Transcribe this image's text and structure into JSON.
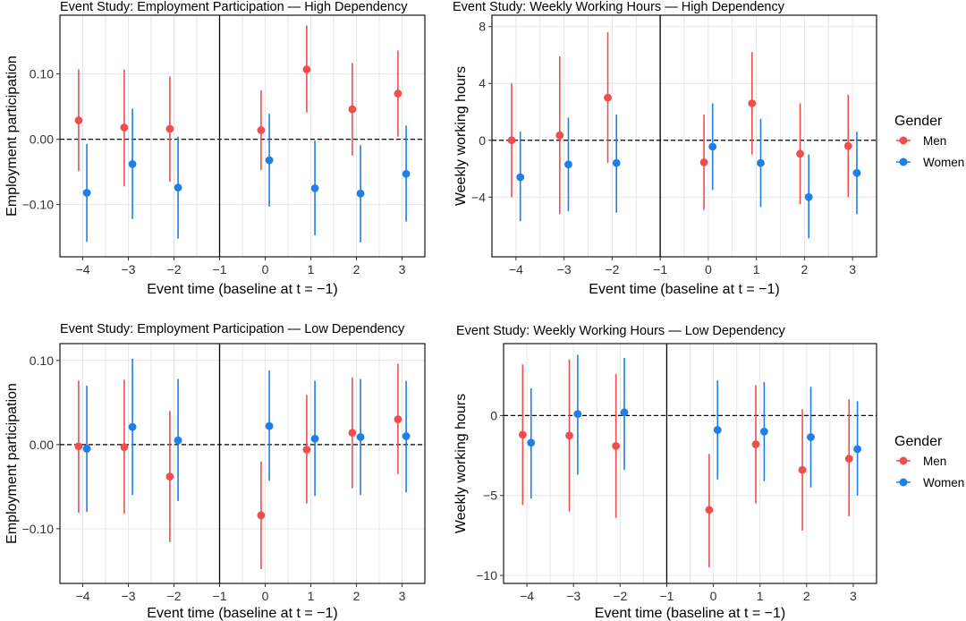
{
  "colors": {
    "men": "#F04E4E",
    "women": "#1E7FE8"
  },
  "legends": [
    {
      "title": "Gender",
      "items": [
        {
          "label": "Men",
          "color": "#F04E4E"
        },
        {
          "label": "Women",
          "color": "#1E7FE8"
        }
      ]
    },
    {
      "title": "Gender",
      "items": [
        {
          "label": "Men",
          "color": "#F04E4E"
        },
        {
          "label": "Women",
          "color": "#1E7FE8"
        }
      ]
    }
  ],
  "chart_data": [
    {
      "type": "scatter",
      "title": "Event Study: Employment Participation — High Dependency",
      "xlabel": "Event time (baseline at t = −1)",
      "ylabel": "Employment participation",
      "xlim": [
        -4.5,
        3.5
      ],
      "ylim": [
        -0.18,
        0.19
      ],
      "x_ticks": [
        -4,
        -3,
        -2,
        -1,
        0,
        1,
        2,
        3
      ],
      "x_tick_labels": [
        "−4",
        "−3",
        "−2",
        "−1",
        "0",
        "1",
        "2",
        "3"
      ],
      "y_ticks": [
        -0.1,
        0,
        0.1
      ],
      "y_tick_labels": [
        "−0.10",
        "0.00",
        "0.10"
      ],
      "hline": 0,
      "vline": -1,
      "grid": true,
      "series": [
        {
          "name": "Men",
          "color": "#F04E4E",
          "x": [
            -4,
            -3,
            -2,
            0,
            1,
            2,
            3
          ],
          "y": [
            0.029,
            0.018,
            0.016,
            0.014,
            0.107,
            0.046,
            0.07
          ],
          "lower": [
            -0.049,
            -0.072,
            -0.065,
            -0.047,
            0.041,
            -0.025,
            0.004
          ],
          "upper": [
            0.107,
            0.107,
            0.096,
            0.075,
            0.174,
            0.117,
            0.136
          ]
        },
        {
          "name": "Women",
          "color": "#1E7FE8",
          "x": [
            -4,
            -3,
            -2,
            0,
            1,
            2,
            3
          ],
          "y": [
            -0.082,
            -0.038,
            -0.074,
            -0.032,
            -0.075,
            -0.083,
            -0.053
          ],
          "lower": [
            -0.157,
            -0.122,
            -0.152,
            -0.103,
            -0.147,
            -0.158,
            -0.126
          ],
          "upper": [
            -0.007,
            0.047,
            0.004,
            0.039,
            -0.002,
            -0.009,
            0.021
          ]
        }
      ]
    },
    {
      "type": "scatter",
      "title": "Event Study: Weekly Working Hours — High Dependency",
      "xlabel": "Event time (baseline at t = −1)",
      "ylabel": "Weekly working hours",
      "xlim": [
        -4.5,
        3.5
      ],
      "ylim": [
        -8.2,
        8.8
      ],
      "x_ticks": [
        -4,
        -3,
        -2,
        -1,
        0,
        1,
        2,
        3
      ],
      "x_tick_labels": [
        "−4",
        "−3",
        "−2",
        "−1",
        "0",
        "1",
        "2",
        "3"
      ],
      "y_ticks": [
        -4,
        0,
        4,
        8
      ],
      "y_tick_labels": [
        "−4",
        "0",
        "4",
        "8"
      ],
      "hline": 0,
      "vline": -1,
      "grid": true,
      "series": [
        {
          "name": "Men",
          "color": "#F04E4E",
          "x": [
            -4,
            -3,
            -2,
            0,
            1,
            2,
            3
          ],
          "y": [
            0.0,
            0.35,
            3.0,
            -1.55,
            2.6,
            -0.95,
            -0.4
          ],
          "lower": [
            -4.0,
            -5.2,
            -1.6,
            -4.9,
            -1.0,
            -4.5,
            -4.0
          ],
          "upper": [
            4.0,
            5.9,
            7.6,
            1.8,
            6.2,
            2.6,
            3.2
          ]
        },
        {
          "name": "Women",
          "color": "#1E7FE8",
          "x": [
            -4,
            -3,
            -2,
            0,
            1,
            2,
            3
          ],
          "y": [
            -2.6,
            -1.7,
            -1.6,
            -0.45,
            -1.6,
            -4.0,
            -2.3
          ],
          "lower": [
            -5.7,
            -5.0,
            -5.1,
            -3.5,
            -4.7,
            -6.9,
            -5.2
          ],
          "upper": [
            0.6,
            1.6,
            1.8,
            2.6,
            1.5,
            -1.0,
            0.6
          ]
        }
      ]
    },
    {
      "type": "scatter",
      "title": "Event Study: Employment Participation — Low Dependency",
      "xlabel": "Event time (baseline at t = −1)",
      "ylabel": "Employment participation",
      "xlim": [
        -4.5,
        3.5
      ],
      "ylim": [
        -0.165,
        0.12
      ],
      "x_ticks": [
        -4,
        -3,
        -2,
        -1,
        0,
        1,
        2,
        3
      ],
      "x_tick_labels": [
        "−4",
        "−3",
        "−2",
        "−1",
        "0",
        "1",
        "2",
        "3"
      ],
      "y_ticks": [
        -0.1,
        0,
        0.1
      ],
      "y_tick_labels": [
        "−0.10",
        "0.00",
        "0.10"
      ],
      "hline": 0,
      "vline": -1,
      "grid": true,
      "series": [
        {
          "name": "Men",
          "color": "#F04E4E",
          "x": [
            -4,
            -3,
            -2,
            0,
            1,
            2,
            3
          ],
          "y": [
            -0.002,
            -0.003,
            -0.038,
            -0.084,
            -0.006,
            0.014,
            0.03
          ],
          "lower": [
            -0.081,
            -0.082,
            -0.116,
            -0.148,
            -0.07,
            -0.052,
            -0.035
          ],
          "upper": [
            0.076,
            0.077,
            0.04,
            -0.02,
            0.059,
            0.08,
            0.096
          ]
        },
        {
          "name": "Women",
          "color": "#1E7FE8",
          "x": [
            -4,
            -3,
            -2,
            0,
            1,
            2,
            3
          ],
          "y": [
            -0.005,
            0.021,
            0.005,
            0.022,
            0.007,
            0.009,
            0.01
          ],
          "lower": [
            -0.08,
            -0.06,
            -0.067,
            -0.043,
            -0.061,
            -0.06,
            -0.057
          ],
          "upper": [
            0.07,
            0.102,
            0.078,
            0.088,
            0.076,
            0.078,
            0.076
          ]
        }
      ]
    },
    {
      "type": "scatter",
      "title": "Event Study: Weekly Working Hours — Low Dependency",
      "xlabel": "Event time (baseline at t = −1)",
      "ylabel": "Weekly working hours",
      "xlim": [
        -4.5,
        3.5
      ],
      "ylim": [
        -10.5,
        4.5
      ],
      "x_ticks": [
        -4,
        -3,
        -2,
        -1,
        0,
        1,
        2,
        3
      ],
      "x_tick_labels": [
        "−4",
        "−3",
        "−2",
        "−1",
        "0",
        "1",
        "2",
        "3"
      ],
      "y_ticks": [
        -10,
        -5,
        0
      ],
      "y_tick_labels": [
        "−10",
        "−5",
        "0"
      ],
      "hline": 0,
      "vline": -1,
      "grid": true,
      "series": [
        {
          "name": "Men",
          "color": "#F04E4E",
          "x": [
            -4,
            -3,
            -2,
            0,
            1,
            2,
            3
          ],
          "y": [
            -1.2,
            -1.25,
            -1.9,
            -5.9,
            -1.8,
            -3.4,
            -2.7
          ],
          "lower": [
            -5.6,
            -6.0,
            -6.4,
            -9.5,
            -5.5,
            -7.2,
            -6.3
          ],
          "upper": [
            3.2,
            3.5,
            2.6,
            -2.4,
            1.9,
            0.4,
            1.0
          ]
        },
        {
          "name": "Women",
          "color": "#1E7FE8",
          "x": [
            -4,
            -3,
            -2,
            0,
            1,
            2,
            3
          ],
          "y": [
            -1.7,
            0.1,
            0.2,
            -0.9,
            -1.0,
            -1.35,
            -2.1
          ],
          "lower": [
            -5.2,
            -3.7,
            -3.4,
            -4.0,
            -4.1,
            -4.5,
            -5.0
          ],
          "upper": [
            1.7,
            3.8,
            3.6,
            2.2,
            2.1,
            1.8,
            0.9
          ]
        }
      ]
    }
  ]
}
